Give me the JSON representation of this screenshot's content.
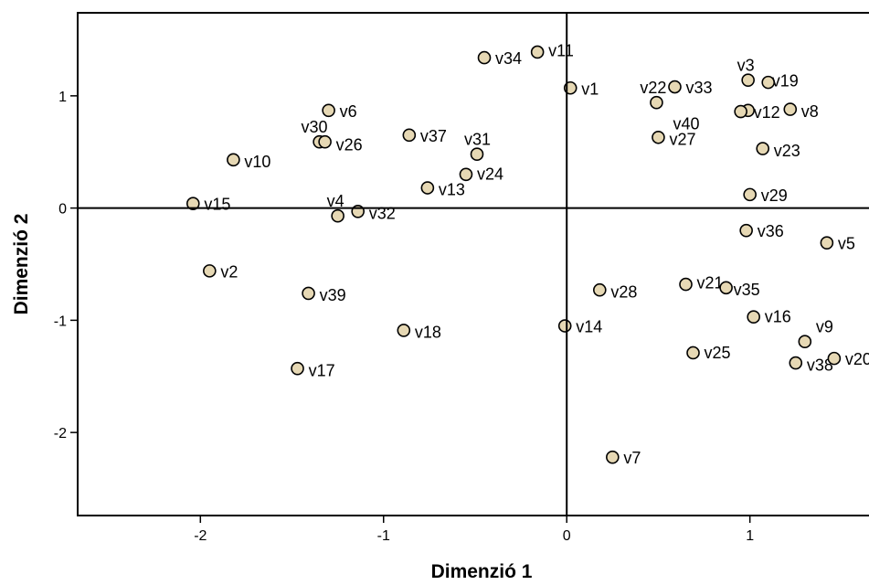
{
  "chart_data": {
    "type": "scatter",
    "title": "",
    "xlabel": "Dimenzió 1",
    "ylabel": "Dimenzió 2",
    "xticks": [
      -2,
      -1,
      0,
      1
    ],
    "yticks": [
      1,
      0,
      -1,
      -2
    ],
    "xlim": [
      -2.67,
      1.72
    ],
    "ylim": [
      -2.74,
      1.74
    ],
    "grid": false,
    "reference_lines": {
      "x": 0,
      "y": 0
    },
    "marker_fill": "#e6d8b4",
    "marker_stroke": "#000000",
    "points": [
      {
        "label": "v34",
        "x": -0.45,
        "y": 1.34,
        "lx": 0.06,
        "ly": 0.0
      },
      {
        "label": "v11",
        "x": -0.16,
        "y": 1.39,
        "lx": 0.06,
        "ly": 0.02
      },
      {
        "label": "v1",
        "x": 0.02,
        "y": 1.07,
        "lx": 0.06,
        "ly": 0.0
      },
      {
        "label": "v22",
        "x": 0.49,
        "y": 0.94,
        "lx": -0.09,
        "ly": 0.14
      },
      {
        "label": "v33",
        "x": 0.59,
        "y": 1.08,
        "lx": 0.06,
        "ly": 0.0
      },
      {
        "label": "v3",
        "x": 0.99,
        "y": 1.14,
        "lx": -0.06,
        "ly": 0.14
      },
      {
        "label": "v19",
        "x": 1.1,
        "y": 1.12,
        "lx": 0.02,
        "ly": 0.02
      },
      {
        "label": "v12",
        "x": 0.99,
        "y": 0.87,
        "lx": 0.03,
        "ly": -0.01
      },
      {
        "label": "v8",
        "x": 1.22,
        "y": 0.88,
        "lx": 0.06,
        "ly": -0.01
      },
      {
        "label": "v40",
        "x": 0.95,
        "y": 0.86,
        "lx": -0.37,
        "ly": -0.1
      },
      {
        "label": "v27",
        "x": 0.5,
        "y": 0.63,
        "lx": 0.06,
        "ly": -0.01
      },
      {
        "label": "v23",
        "x": 1.07,
        "y": 0.53,
        "lx": 0.06,
        "ly": -0.01
      },
      {
        "label": "v6",
        "x": -1.3,
        "y": 0.87,
        "lx": 0.06,
        "ly": 0.0
      },
      {
        "label": "v30",
        "x": -1.35,
        "y": 0.59,
        "lx": -0.1,
        "ly": 0.14
      },
      {
        "label": "v26",
        "x": -1.32,
        "y": 0.59,
        "lx": 0.06,
        "ly": -0.02
      },
      {
        "label": "v37",
        "x": -0.86,
        "y": 0.65,
        "lx": 0.06,
        "ly": 0.0
      },
      {
        "label": "v31",
        "x": -0.49,
        "y": 0.48,
        "lx": -0.07,
        "ly": 0.14
      },
      {
        "label": "v10",
        "x": -1.82,
        "y": 0.43,
        "lx": 0.06,
        "ly": -0.01
      },
      {
        "label": "v24",
        "x": -0.55,
        "y": 0.3,
        "lx": 0.06,
        "ly": 0.01
      },
      {
        "label": "v13",
        "x": -0.76,
        "y": 0.18,
        "lx": 0.06,
        "ly": -0.01
      },
      {
        "label": "v15",
        "x": -2.04,
        "y": 0.04,
        "lx": 0.06,
        "ly": 0.0
      },
      {
        "label": "v4",
        "x": -1.25,
        "y": -0.07,
        "lx": -0.06,
        "ly": 0.14
      },
      {
        "label": "v32",
        "x": -1.14,
        "y": -0.03,
        "lx": 0.06,
        "ly": -0.01
      },
      {
        "label": "v29",
        "x": 1.0,
        "y": 0.12,
        "lx": 0.06,
        "ly": 0.0
      },
      {
        "label": "v36",
        "x": 0.98,
        "y": -0.2,
        "lx": 0.06,
        "ly": 0.0
      },
      {
        "label": "v5",
        "x": 1.42,
        "y": -0.31,
        "lx": 0.06,
        "ly": 0.0
      },
      {
        "label": "v2",
        "x": -1.95,
        "y": -0.56,
        "lx": 0.06,
        "ly": 0.0
      },
      {
        "label": "v39",
        "x": -1.41,
        "y": -0.76,
        "lx": 0.06,
        "ly": -0.01
      },
      {
        "label": "v28",
        "x": 0.18,
        "y": -0.73,
        "lx": 0.06,
        "ly": -0.01
      },
      {
        "label": "v21",
        "x": 0.65,
        "y": -0.68,
        "lx": 0.06,
        "ly": 0.02
      },
      {
        "label": "v35",
        "x": 0.87,
        "y": -0.71,
        "lx": 0.04,
        "ly": -0.01
      },
      {
        "label": "v16",
        "x": 1.02,
        "y": -0.97,
        "lx": 0.06,
        "ly": 0.01
      },
      {
        "label": "v9",
        "x": 1.3,
        "y": -1.19,
        "lx": 0.06,
        "ly": 0.14
      },
      {
        "label": "v14",
        "x": -0.01,
        "y": -1.05,
        "lx": 0.06,
        "ly": 0.0
      },
      {
        "label": "v18",
        "x": -0.89,
        "y": -1.09,
        "lx": 0.06,
        "ly": -0.01
      },
      {
        "label": "v25",
        "x": 0.69,
        "y": -1.29,
        "lx": 0.06,
        "ly": 0.01
      },
      {
        "label": "v38",
        "x": 1.25,
        "y": -1.38,
        "lx": 0.06,
        "ly": -0.01
      },
      {
        "label": "v20",
        "x": 1.46,
        "y": -1.34,
        "lx": 0.06,
        "ly": 0.0
      },
      {
        "label": "v17",
        "x": -1.47,
        "y": -1.43,
        "lx": 0.06,
        "ly": -0.01
      },
      {
        "label": "v7",
        "x": 0.25,
        "y": -2.22,
        "lx": 0.06,
        "ly": 0.0
      }
    ]
  }
}
